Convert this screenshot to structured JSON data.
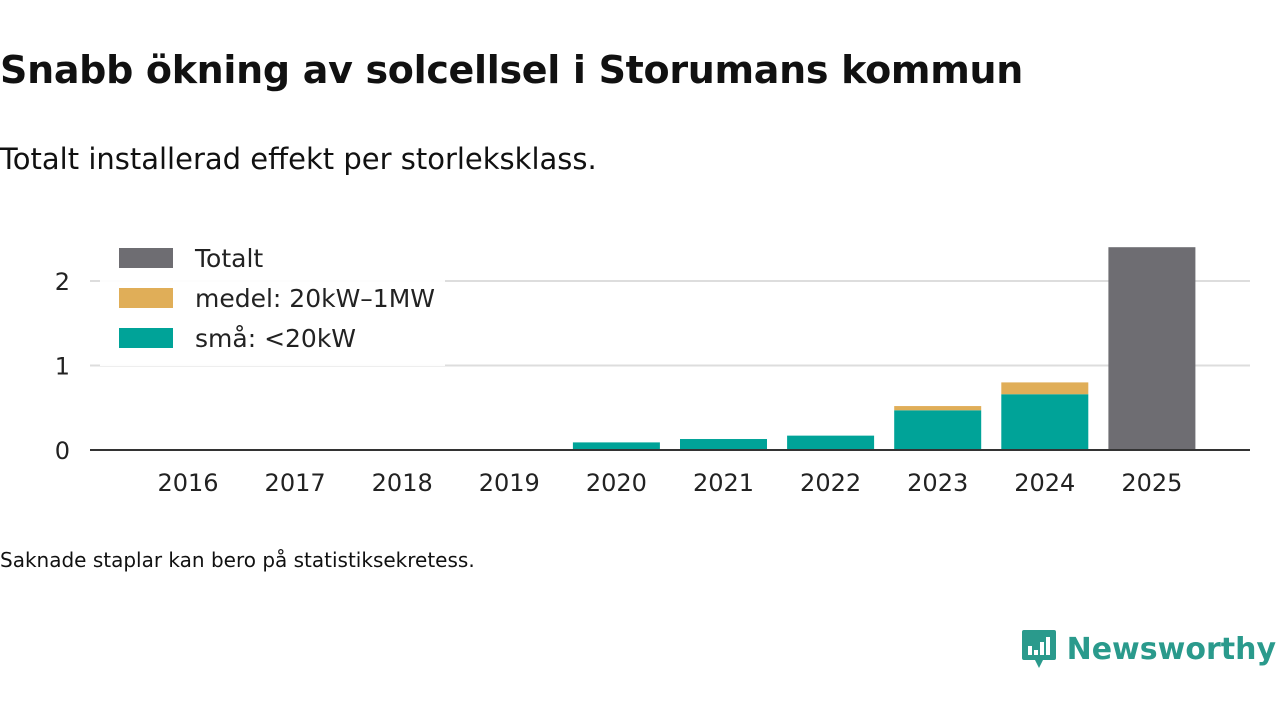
{
  "title": "Snabb ökning av solcellsel i Storumans kommun",
  "subtitle": "Totalt installerad effekt per storleksklass.",
  "note": "Saknade staplar kan bero på statistiksekretess.",
  "brand": {
    "name": "Newsworthy",
    "color": "#2a9a8c",
    "icon": "newsworthy-logo-icon"
  },
  "chart_data": {
    "type": "bar",
    "stacked": true,
    "categories": [
      "2016",
      "2017",
      "2018",
      "2019",
      "2020",
      "2021",
      "2022",
      "2023",
      "2024",
      "2025"
    ],
    "series": [
      {
        "name": "små: <20kW",
        "color": "#00a398",
        "values": [
          0,
          0,
          0,
          0,
          0.09,
          0.13,
          0.17,
          0.47,
          0.66,
          0
        ]
      },
      {
        "name": "medel: 20kW–1MW",
        "color": "#e0ae58",
        "values": [
          0,
          0,
          0,
          0,
          0,
          0,
          0,
          0.05,
          0.14,
          0
        ]
      },
      {
        "name": "Totalt",
        "color": "#6e6d72",
        "values": [
          0,
          0,
          0,
          0,
          0,
          0,
          0,
          0,
          0,
          2.4
        ]
      }
    ],
    "legend_order": [
      "Totalt",
      "medel: 20kW–1MW",
      "små: <20kW"
    ],
    "legend_position": "top-left",
    "yticks": [
      0,
      1,
      2
    ],
    "ylim": [
      0,
      2.45
    ],
    "xlabel": "",
    "ylabel": "",
    "grid": true
  }
}
